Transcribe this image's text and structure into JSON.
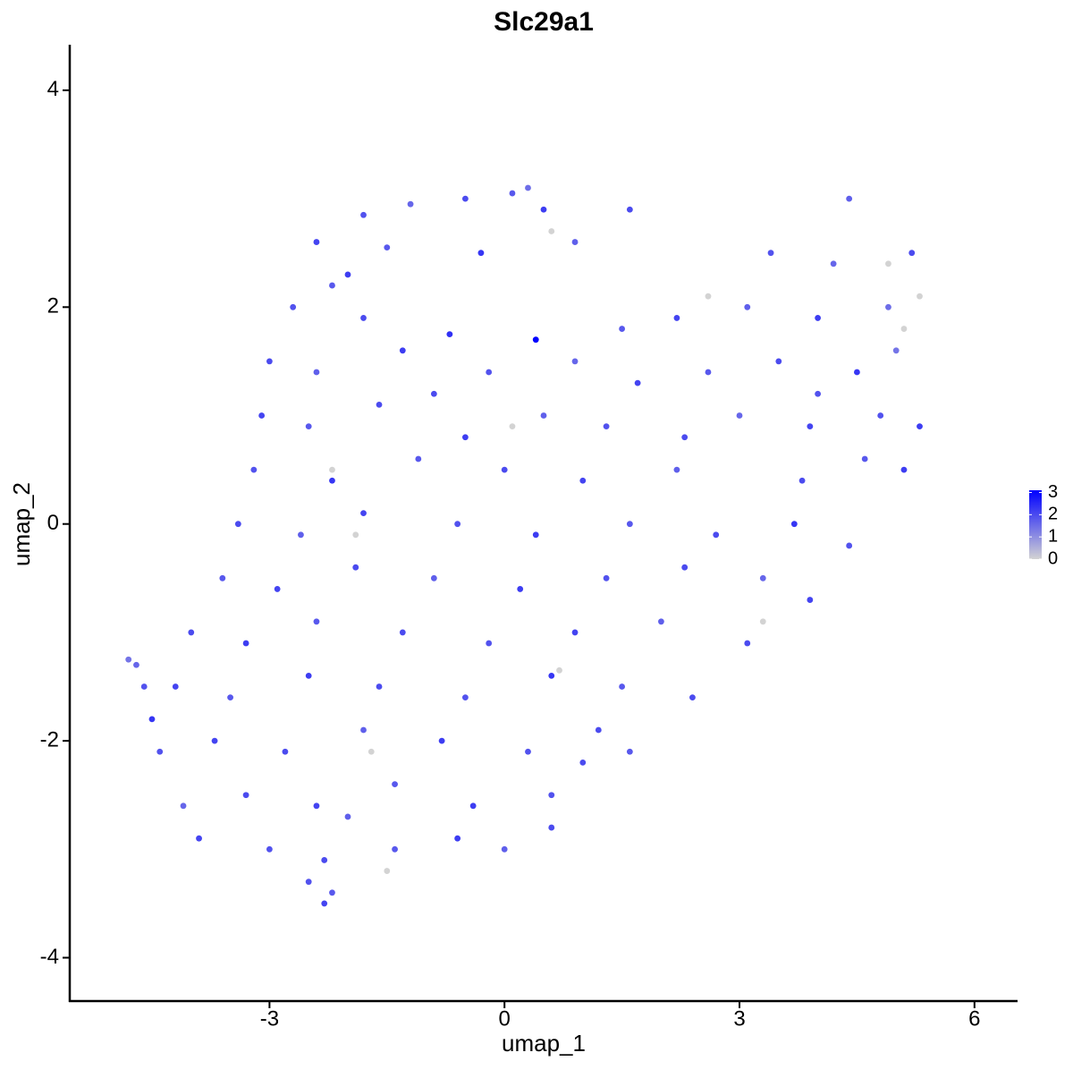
{
  "chart_data": {
    "type": "scatter",
    "title": "Slc29a1",
    "x_label": "umap_1",
    "y_label": "umap_2",
    "xlim": [
      -5.55,
      6.55
    ],
    "ylim": [
      -4.4,
      4.42
    ],
    "xticks": [
      -3,
      0,
      3,
      6
    ],
    "yticks": [
      -4,
      -2,
      0,
      2,
      4
    ],
    "grid": false,
    "color_scale": {
      "range": [
        0,
        3.1
      ],
      "ticks": [
        0,
        1,
        2,
        3
      ],
      "low_color": "#d3d3d3",
      "high_color": "#0000ff"
    },
    "points": [
      [
        -0.5,
        3.0,
        2.0
      ],
      [
        0.1,
        3.05,
        1.8
      ],
      [
        -1.2,
        2.95,
        1.6
      ],
      [
        0.5,
        2.9,
        2.2
      ],
      [
        -1.8,
        2.85,
        1.9
      ],
      [
        4.4,
        3.0,
        1.7
      ],
      [
        1.6,
        2.9,
        2.0
      ],
      [
        0.3,
        3.1,
        1.5
      ],
      [
        -2.4,
        2.6,
        2.1
      ],
      [
        -1.5,
        2.55,
        1.8
      ],
      [
        -0.3,
        2.5,
        2.3
      ],
      [
        0.9,
        2.6,
        1.7
      ],
      [
        3.4,
        2.5,
        1.9
      ],
      [
        4.2,
        2.4,
        1.6
      ],
      [
        5.2,
        2.5,
        2.0
      ],
      [
        4.9,
        2.4,
        0
      ],
      [
        -2.0,
        2.3,
        2.2
      ],
      [
        0.6,
        2.7,
        0
      ],
      [
        -2.7,
        2.0,
        1.9
      ],
      [
        -1.8,
        1.9,
        2.0
      ],
      [
        -0.7,
        1.75,
        2.4
      ],
      [
        0.4,
        1.7,
        3.1
      ],
      [
        1.5,
        1.8,
        1.8
      ],
      [
        2.2,
        1.9,
        2.1
      ],
      [
        3.1,
        2.0,
        1.7
      ],
      [
        4.0,
        1.9,
        2.2
      ],
      [
        4.9,
        2.0,
        1.5
      ],
      [
        5.1,
        1.8,
        0
      ],
      [
        5.3,
        2.1,
        0
      ],
      [
        2.6,
        2.1,
        0
      ],
      [
        -2.2,
        2.2,
        1.8
      ],
      [
        -3.0,
        1.5,
        2.0
      ],
      [
        -2.4,
        1.4,
        1.7
      ],
      [
        -1.3,
        1.6,
        2.2
      ],
      [
        -0.2,
        1.4,
        1.9
      ],
      [
        0.9,
        1.5,
        1.6
      ],
      [
        1.7,
        1.3,
        2.1
      ],
      [
        2.6,
        1.4,
        1.8
      ],
      [
        3.5,
        1.5,
        2.0
      ],
      [
        4.5,
        1.4,
        2.3
      ],
      [
        5.0,
        1.6,
        1.4
      ],
      [
        -0.9,
        1.2,
        2.0
      ],
      [
        4.0,
        1.2,
        1.9
      ],
      [
        -3.1,
        1.0,
        2.1
      ],
      [
        -2.5,
        0.9,
        1.8
      ],
      [
        -1.6,
        1.1,
        2.0
      ],
      [
        -0.5,
        0.8,
        2.2
      ],
      [
        0.5,
        1.0,
        1.7
      ],
      [
        1.3,
        0.9,
        1.9
      ],
      [
        2.3,
        0.8,
        2.0
      ],
      [
        3.0,
        1.0,
        1.6
      ],
      [
        3.9,
        0.9,
        2.1
      ],
      [
        4.8,
        1.0,
        1.9
      ],
      [
        5.3,
        0.9,
        2.2
      ],
      [
        0.1,
        0.9,
        0
      ],
      [
        -3.2,
        0.5,
        1.9
      ],
      [
        -2.2,
        0.4,
        2.3
      ],
      [
        -1.1,
        0.6,
        1.8
      ],
      [
        0.0,
        0.5,
        2.0
      ],
      [
        1.0,
        0.4,
        2.1
      ],
      [
        2.2,
        0.5,
        1.7
      ],
      [
        3.8,
        0.4,
        2.0
      ],
      [
        4.6,
        0.6,
        1.8
      ],
      [
        5.1,
        0.5,
        2.2
      ],
      [
        -2.2,
        0.5,
        0
      ],
      [
        -3.4,
        0.0,
        2.0
      ],
      [
        -2.6,
        -0.1,
        1.7
      ],
      [
        -1.8,
        0.1,
        2.1
      ],
      [
        -0.6,
        0.0,
        1.9
      ],
      [
        0.4,
        -0.1,
        2.2
      ],
      [
        1.6,
        0.0,
        1.8
      ],
      [
        2.7,
        -0.1,
        2.0
      ],
      [
        3.7,
        0.0,
        2.3
      ],
      [
        4.4,
        -0.2,
        1.9
      ],
      [
        -1.9,
        -0.1,
        0
      ],
      [
        -3.6,
        -0.5,
        1.8
      ],
      [
        -2.9,
        -0.6,
        2.1
      ],
      [
        -1.9,
        -0.4,
        2.0
      ],
      [
        -0.9,
        -0.5,
        1.7
      ],
      [
        0.2,
        -0.6,
        2.2
      ],
      [
        1.3,
        -0.5,
        1.9
      ],
      [
        2.3,
        -0.4,
        2.0
      ],
      [
        3.3,
        -0.5,
        1.6
      ],
      [
        3.9,
        -0.7,
        2.1
      ],
      [
        -4.0,
        -1.0,
        2.0
      ],
      [
        -3.3,
        -1.1,
        2.2
      ],
      [
        -2.4,
        -0.9,
        1.8
      ],
      [
        -1.3,
        -1.0,
        2.0
      ],
      [
        -0.2,
        -1.1,
        1.9
      ],
      [
        0.9,
        -1.0,
        2.1
      ],
      [
        2.0,
        -0.9,
        1.7
      ],
      [
        3.1,
        -1.1,
        2.0
      ],
      [
        3.3,
        -0.9,
        0
      ],
      [
        -4.8,
        -1.25,
        1.4
      ],
      [
        -4.7,
        -1.3,
        1.6
      ],
      [
        -4.6,
        -1.5,
        1.9
      ],
      [
        -4.2,
        -1.5,
        2.1
      ],
      [
        -3.5,
        -1.6,
        1.8
      ],
      [
        -2.5,
        -1.4,
        2.2
      ],
      [
        -1.6,
        -1.5,
        2.0
      ],
      [
        -0.5,
        -1.6,
        1.9
      ],
      [
        0.6,
        -1.4,
        2.3
      ],
      [
        1.5,
        -1.5,
        1.8
      ],
      [
        2.4,
        -1.6,
        2.0
      ],
      [
        0.7,
        -1.35,
        0
      ],
      [
        -4.4,
        -2.1,
        1.9
      ],
      [
        -3.7,
        -2.0,
        2.1
      ],
      [
        -2.8,
        -2.1,
        2.0
      ],
      [
        -1.8,
        -1.9,
        1.7
      ],
      [
        -0.8,
        -2.0,
        2.2
      ],
      [
        0.3,
        -2.1,
        1.9
      ],
      [
        1.2,
        -1.9,
        2.0
      ],
      [
        1.6,
        -2.1,
        1.8
      ],
      [
        -4.5,
        -1.8,
        2.3
      ],
      [
        -1.7,
        -2.1,
        0
      ],
      [
        -4.1,
        -2.6,
        1.6
      ],
      [
        -3.3,
        -2.5,
        2.0
      ],
      [
        -2.4,
        -2.6,
        2.1
      ],
      [
        -1.4,
        -2.4,
        1.8
      ],
      [
        -0.4,
        -2.6,
        2.2
      ],
      [
        0.6,
        -2.5,
        1.9
      ],
      [
        1.0,
        -2.2,
        2.0
      ],
      [
        -2.0,
        -2.7,
        1.7
      ],
      [
        -3.9,
        -2.9,
        2.1
      ],
      [
        -3.0,
        -3.0,
        1.9
      ],
      [
        -2.3,
        -3.1,
        2.0
      ],
      [
        -1.4,
        -3.0,
        1.8
      ],
      [
        -0.6,
        -2.9,
        2.2
      ],
      [
        0.0,
        -3.0,
        1.7
      ],
      [
        0.6,
        -2.8,
        2.0
      ],
      [
        -1.5,
        -3.2,
        0
      ],
      [
        -2.5,
        -3.3,
        1.9
      ],
      [
        -2.3,
        -3.5,
        2.1
      ],
      [
        -2.2,
        -3.4,
        1.8
      ]
    ]
  }
}
